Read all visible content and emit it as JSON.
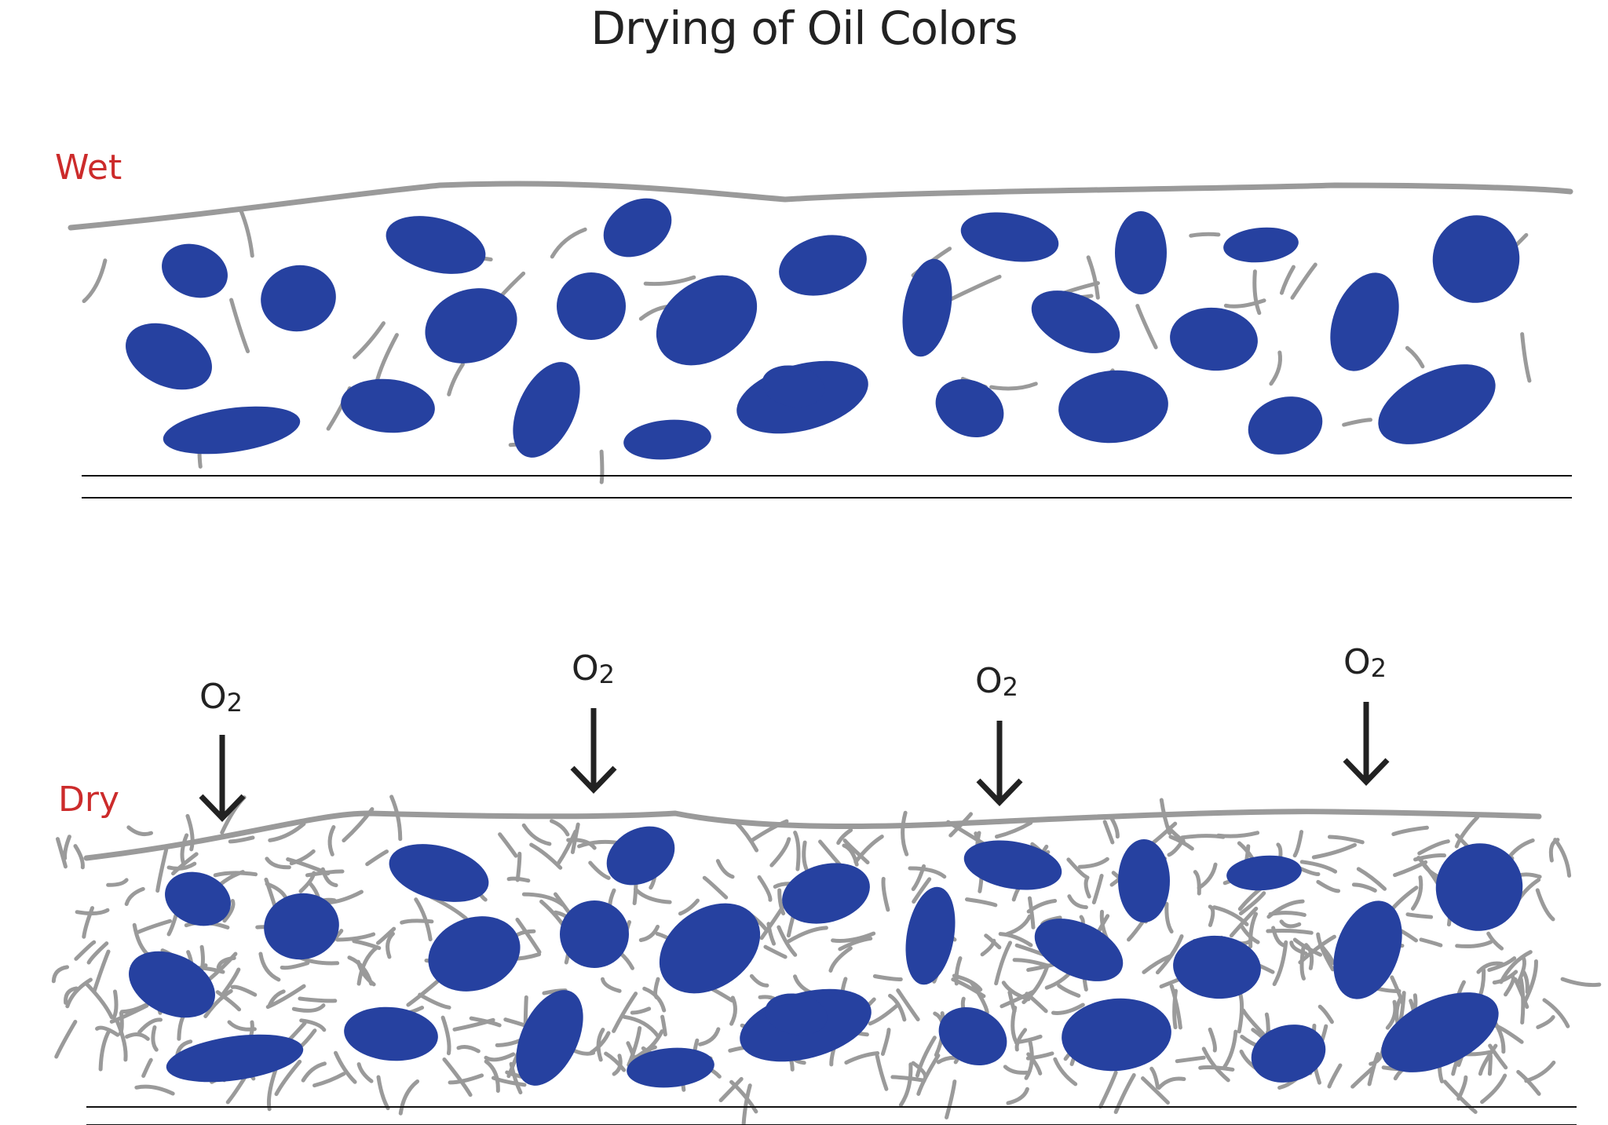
{
  "title": "Drying of Oil Colors",
  "labels": {
    "wet": "Wet",
    "dry": "Dry"
  },
  "oxygen": {
    "element": "O",
    "subscript": "2"
  },
  "colors": {
    "pigment": "#2641a0",
    "binder": "#9a9a9a",
    "label": "#cc2b2b",
    "text": "#222222",
    "substrate": "#111111"
  }
}
